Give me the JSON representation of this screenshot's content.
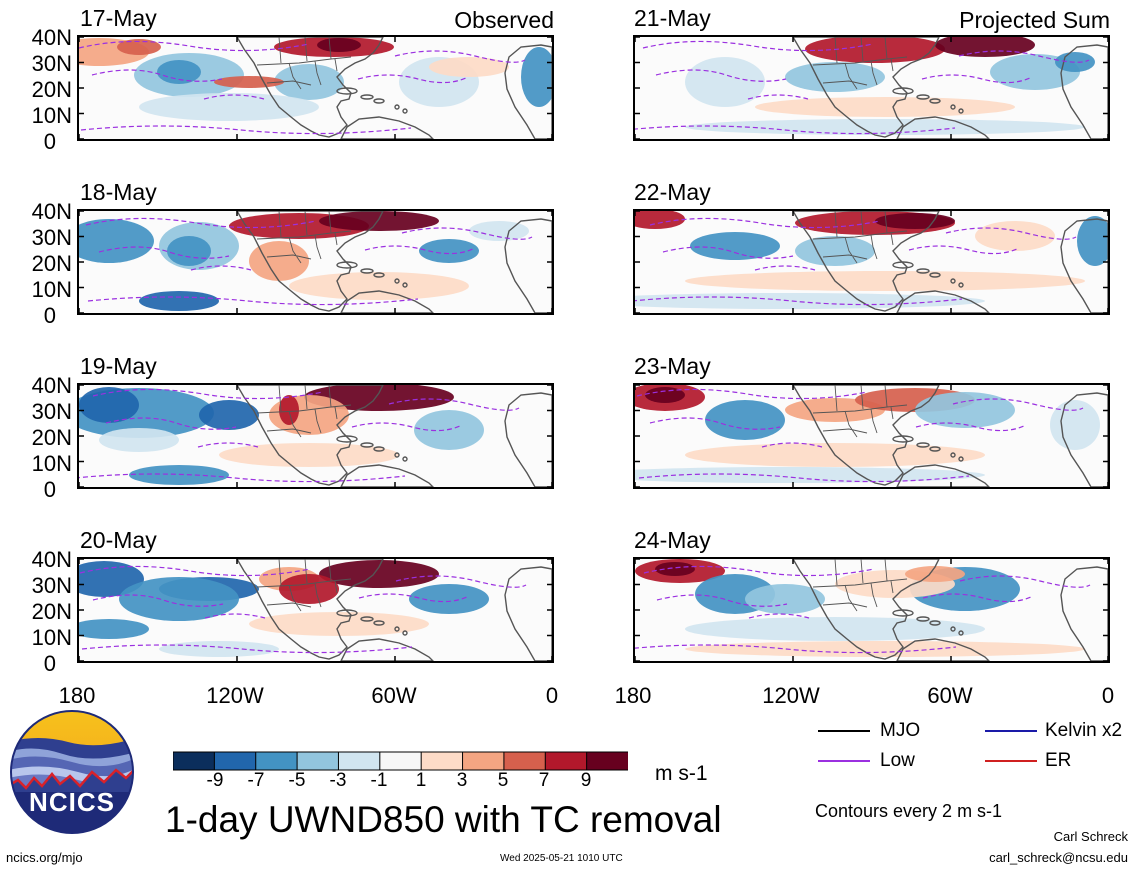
{
  "panels": {
    "p1": {
      "date": "17-May"
    },
    "p2": {
      "date": "18-May"
    },
    "p3": {
      "date": "19-May"
    },
    "p4": {
      "date": "20-May"
    },
    "p5": {
      "date": "21-May"
    },
    "p6": {
      "date": "22-May"
    },
    "p7": {
      "date": "23-May"
    },
    "p8": {
      "date": "24-May"
    }
  },
  "left_column_label": "Observed",
  "right_column_label": "Projected Sum",
  "lat_labels": [
    "40N",
    "30N",
    "20N",
    "10N",
    "0"
  ],
  "lon_labels": [
    "180",
    "120W",
    "60W",
    "0"
  ],
  "colorbar": {
    "ticks": [
      "-9",
      "-7",
      "-5",
      "-3",
      "-1",
      "1",
      "3",
      "5",
      "7",
      "9"
    ],
    "colors": [
      "#0b2e5c",
      "#2166ac",
      "#4393c3",
      "#92c5de",
      "#d1e5f0",
      "#f7f7f7",
      "#fddbc7",
      "#f4a582",
      "#d6604d",
      "#b2182b",
      "#67001f"
    ],
    "units": "m s-1"
  },
  "legend": {
    "mjo": {
      "label": "MJO",
      "color": "#000000"
    },
    "kelvin": {
      "label": "Kelvin x2",
      "color": "#1a1aa8"
    },
    "low": {
      "label": "Low",
      "color": "#9b30e0"
    },
    "er": {
      "label": "ER",
      "color": "#d02020"
    }
  },
  "title": "1-day UWND850 with TC removal",
  "contour_note": "Contours every 2 m s-1",
  "logo_text": "NCICS",
  "footer": {
    "url": "ncics.org/mjo",
    "timestamp": "Wed 2025-05-21 1010 UTC",
    "author": "Carl Schreck",
    "email": "carl_schreck@ncsu.edu"
  }
}
